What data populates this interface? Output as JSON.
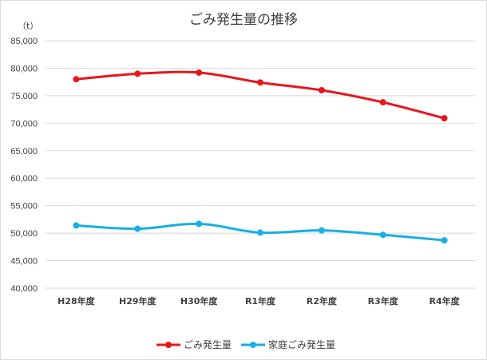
{
  "chart_data": {
    "type": "line",
    "title": "ごみ発生量の推移",
    "unit_label": "（t）",
    "categories": [
      "H28年度",
      "H29年度",
      "H30年度",
      "R1年度",
      "R2年度",
      "R3年度",
      "R4年度"
    ],
    "ylim": [
      40000,
      85000
    ],
    "yticks": [
      40000,
      45000,
      50000,
      55000,
      60000,
      65000,
      70000,
      75000,
      80000,
      85000
    ],
    "ytick_labels": [
      "40,000",
      "45,000",
      "50,000",
      "55,000",
      "60,000",
      "65,000",
      "70,000",
      "75,000",
      "80,000",
      "85,000"
    ],
    "grid": true,
    "legend_position": "bottom",
    "series": [
      {
        "name": "ごみ発生量",
        "color": "#e8171b",
        "values": [
          78000,
          79000,
          79200,
          77400,
          76000,
          73800,
          70900
        ]
      },
      {
        "name": "家庭ごみ発生量",
        "color": "#19aee6",
        "values": [
          51400,
          50800,
          51700,
          50100,
          50500,
          49700,
          48700
        ]
      }
    ]
  }
}
